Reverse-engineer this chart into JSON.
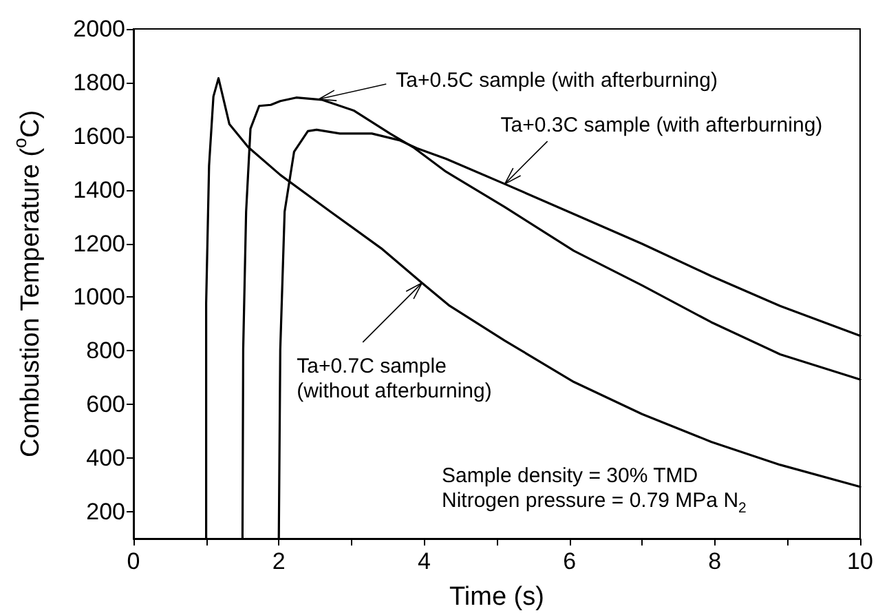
{
  "chart_data": {
    "type": "line",
    "xlabel": "Time (s)",
    "ylabel": "Combustion Temperature ($^{o}$C)",
    "xlim": [
      0,
      10
    ],
    "ylim": [
      100,
      2000
    ],
    "xticks": [
      0,
      {
        "value": 1,
        "label": null
      },
      2,
      {
        "value": 3,
        "label": null
      },
      4,
      {
        "value": 5,
        "label": null
      },
      6,
      {
        "value": 7,
        "label": null
      },
      8,
      {
        "value": 9,
        "label": null
      },
      10
    ],
    "yticks": [
      200,
      400,
      600,
      800,
      1000,
      1200,
      1400,
      1600,
      1800,
      2000
    ],
    "grid": false,
    "marker": "none",
    "line_style": "solid",
    "series": [
      {
        "color": "#000000",
        "x": [
          1.5,
          1.51,
          1.55,
          1.61,
          1.73,
          1.89,
          2.02,
          2.24,
          2.59,
          3.03,
          3.53,
          3.85,
          4.3,
          5.11,
          6.06,
          7.0,
          7.95,
          8.9,
          10
        ],
        "values": [
          100,
          806,
          1319,
          1628,
          1713,
          1717,
          1731,
          1744,
          1736,
          1696,
          1610,
          1559,
          1468,
          1336,
          1173,
          1044,
          907,
          787,
          693
        ]
      },
      {
        "color": "#000000",
        "x": [
          2.0,
          2.02,
          2.08,
          2.21,
          2.4,
          2.52,
          2.84,
          3.28,
          3.66,
          3.9,
          4.3,
          5.11,
          6.06,
          7.0,
          7.95,
          8.9,
          10
        ],
        "values": [
          100,
          804,
          1319,
          1542,
          1619,
          1624,
          1610,
          1610,
          1585,
          1555,
          1516,
          1422,
          1310,
          1199,
          1079,
          967,
          856
        ]
      },
      {
        "color": "#000000",
        "x": [
          1.0,
          1.0,
          1.04,
          1.1,
          1.17,
          1.23,
          1.32,
          1.58,
          2.02,
          2.71,
          3.41,
          3.97,
          4.35,
          5.11,
          6.06,
          7.0,
          7.95,
          8.9,
          10
        ],
        "values": [
          100,
          976,
          1490,
          1748,
          1816,
          1748,
          1645,
          1559,
          1456,
          1319,
          1182,
          1053,
          968,
          838,
          684,
          564,
          461,
          375,
          293
        ]
      }
    ],
    "annotations": [
      {
        "text": "Ta+0.5C sample (with afterburning)",
        "x": 2.55,
        "y": 1738
      },
      {
        "text": "Ta+0.3C sample (with afterburning)",
        "x": 5.11,
        "y": 1422
      },
      {
        "text": "Ta+0.7C sample\n(without afterburning)",
        "x": 3.97,
        "y": 1053
      },
      "Sample density = 30% TMD",
      "Nitrogen pressure = 0.79 MPa N$_{2}$"
    ]
  }
}
